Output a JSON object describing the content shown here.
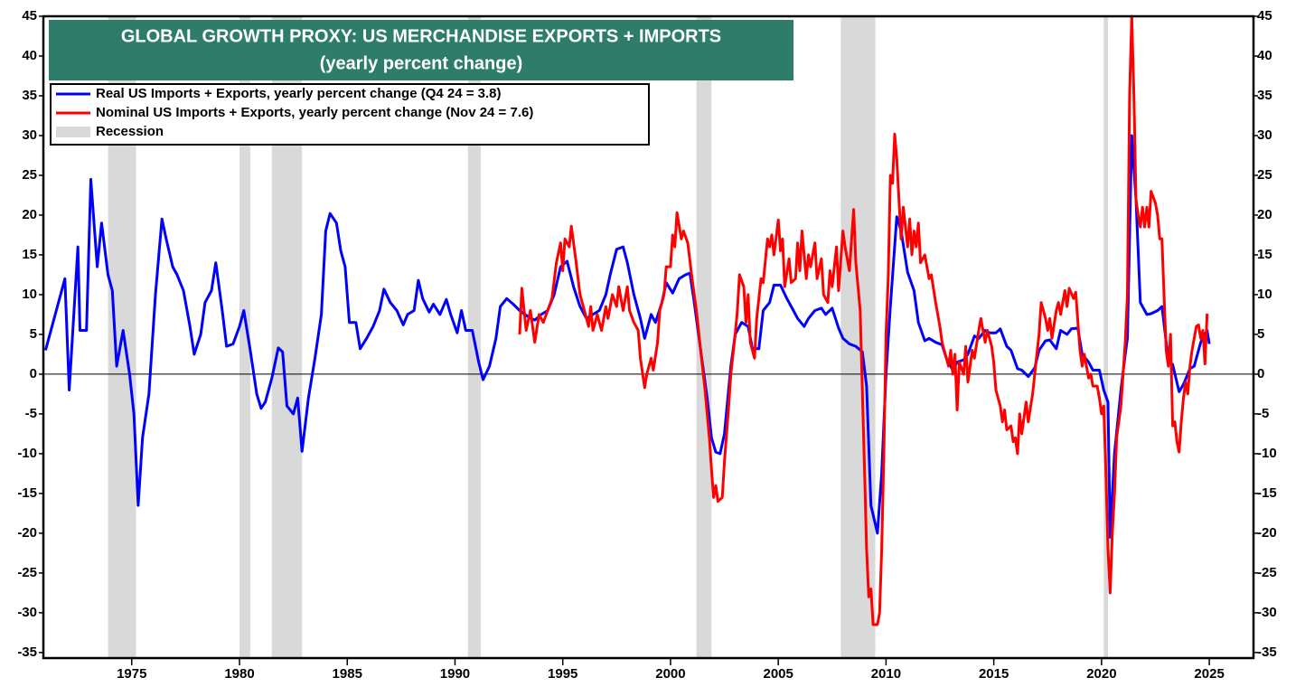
{
  "chart_data": {
    "type": "line",
    "title": "GLOBAL GROWTH PROXY: US MERCHANDISE EXPORTS + IMPORTS",
    "subtitle": "(yearly percent change)",
    "xlim": [
      1970.9,
      2027.05
    ],
    "xticks": [
      1975,
      1980,
      1985,
      1990,
      1995,
      2000,
      2005,
      2010,
      2015,
      2020,
      2025
    ],
    "ylim": [
      -35.7,
      45
    ],
    "yticks": [
      -35,
      -30,
      -25,
      -20,
      -15,
      -10,
      -5,
      0,
      5,
      10,
      15,
      20,
      25,
      30,
      35,
      40,
      45
    ],
    "y2lim": [
      -35.7,
      45
    ],
    "y2ticks": [
      -35,
      -30,
      -25,
      -20,
      -15,
      -10,
      -5,
      0,
      5,
      10,
      15,
      20,
      25,
      30,
      35,
      40,
      45
    ],
    "legend": "upper left",
    "recession": {
      "name": "Recession",
      "color": "#d9d9d9",
      "periods": [
        [
          1973.9,
          1975.2
        ],
        [
          1980.0,
          1980.5
        ],
        [
          1981.5,
          1982.9
        ],
        [
          1990.6,
          1991.2
        ],
        [
          2001.2,
          2001.9
        ],
        [
          2007.9,
          2009.5
        ],
        [
          2020.1,
          2020.3
        ]
      ]
    },
    "series": [
      {
        "name": "Real US Imports + Exports, yearly percent change (Q4 24 = 3.8)",
        "color": "#0000ff",
        "x": [
          1971.0,
          1971.5,
          1971.9,
          1972.1,
          1972.5,
          1972.6,
          1972.9,
          1973.1,
          1973.4,
          1973.6,
          1973.9,
          1974.1,
          1974.3,
          1974.6,
          1974.9,
          1975.1,
          1975.3,
          1975.5,
          1975.8,
          1976.1,
          1976.4,
          1976.6,
          1976.9,
          1977.1,
          1977.4,
          1977.7,
          1977.9,
          1978.2,
          1978.4,
          1978.7,
          1978.9,
          1979.2,
          1979.4,
          1979.7,
          1980.0,
          1980.2,
          1980.5,
          1980.8,
          1981.0,
          1981.2,
          1981.5,
          1981.8,
          1982.0,
          1982.2,
          1982.5,
          1982.7,
          1982.9,
          1983.2,
          1983.5,
          1983.8,
          1984.0,
          1984.2,
          1984.5,
          1984.7,
          1984.9,
          1985.1,
          1985.4,
          1985.6,
          1985.9,
          1986.2,
          1986.5,
          1986.7,
          1987.0,
          1987.3,
          1987.6,
          1987.8,
          1988.1,
          1988.3,
          1988.5,
          1988.8,
          1989.0,
          1989.3,
          1989.6,
          1989.8,
          1990.1,
          1990.3,
          1990.5,
          1990.8,
          1991.1,
          1991.3,
          1991.6,
          1991.9,
          1992.1,
          1992.4,
          1992.7,
          1993.0,
          1993.4,
          1993.7,
          1994.0,
          1994.3,
          1994.6,
          1994.9,
          1995.2,
          1995.5,
          1995.8,
          1996.1,
          1996.4,
          1996.7,
          1997.0,
          1997.2,
          1997.5,
          1997.8,
          1998.0,
          1998.3,
          1998.6,
          1998.8,
          1999.1,
          1999.3,
          1999.6,
          1999.8,
          2000.1,
          2000.4,
          2000.7,
          2000.9,
          2001.1,
          2001.4,
          2001.7,
          2001.9,
          2002.1,
          2002.3,
          2002.5,
          2002.8,
          2003.0,
          2003.3,
          2003.6,
          2003.8,
          2004.1,
          2004.3,
          2004.6,
          2004.8,
          2005.1,
          2005.4,
          2005.7,
          2005.9,
          2006.2,
          2006.4,
          2006.7,
          2007.0,
          2007.2,
          2007.5,
          2007.8,
          2008.0,
          2008.3,
          2008.6,
          2008.9,
          2009.1,
          2009.3,
          2009.6,
          2009.8,
          2010.0,
          2010.2,
          2010.5,
          2010.7,
          2011.0,
          2011.3,
          2011.5,
          2011.8,
          2012.0,
          2012.3,
          2012.6,
          2012.8,
          2013.1,
          2013.3,
          2013.6,
          2013.8,
          2014.1,
          2014.3,
          2014.6,
          2014.8,
          2015.1,
          2015.3,
          2015.6,
          2015.8,
          2016.1,
          2016.3,
          2016.6,
          2016.9,
          2017.1,
          2017.4,
          2017.6,
          2017.9,
          2018.1,
          2018.4,
          2018.6,
          2018.9,
          2019.1,
          2019.4,
          2019.6,
          2019.9,
          2020.1,
          2020.3,
          2020.4,
          2020.6,
          2020.9,
          2021.1,
          2021.2,
          2021.4,
          2021.6,
          2021.8,
          2022.1,
          2022.3,
          2022.6,
          2022.8,
          2023.1,
          2023.3,
          2023.6,
          2023.8,
          2024.1,
          2024.3,
          2024.6,
          2024.9,
          2025.0
        ],
        "values": [
          3,
          8,
          12,
          -2,
          16,
          5.5,
          5.5,
          24.5,
          13.5,
          19,
          12.5,
          10.5,
          1,
          5.5,
          0,
          -5,
          -16.5,
          -8,
          -2.5,
          10,
          19.5,
          17,
          13.5,
          12.5,
          10.5,
          6,
          2.5,
          5,
          9,
          10.5,
          14,
          8,
          3.5,
          3.8,
          6,
          8,
          3,
          -2.5,
          -4.3,
          -3.5,
          -0.5,
          3.3,
          2.8,
          -4,
          -5,
          -3,
          -9.7,
          -3,
          2,
          7.5,
          18,
          20.2,
          19,
          15.5,
          13.5,
          6.5,
          6.5,
          3.2,
          4.5,
          6,
          8,
          10.7,
          9,
          8,
          6.2,
          7.5,
          8,
          11.8,
          9.5,
          7.8,
          8.8,
          7.5,
          9.4,
          7.5,
          5.2,
          8,
          5.5,
          5.5,
          1.5,
          -0.7,
          1,
          4.5,
          8.5,
          9.5,
          8.8,
          8,
          7.2,
          6.8,
          7.5,
          8,
          10,
          13.5,
          14.2,
          11,
          8.5,
          7,
          7.5,
          8,
          10,
          12.5,
          15.7,
          16,
          14,
          10,
          7,
          4.5,
          7.5,
          6.5,
          9,
          11.5,
          10.2,
          12,
          12.5,
          12.7,
          9,
          3,
          -3,
          -8,
          -9.8,
          -10,
          -7.5,
          1,
          5,
          6.5,
          6,
          3.2,
          3.2,
          8,
          9,
          11.2,
          11.2,
          9.5,
          8,
          7,
          6,
          7,
          8,
          8.3,
          7.5,
          8.3,
          5.8,
          4.5,
          3.8,
          3.5,
          2.8,
          -1.5,
          -16.5,
          -20,
          -12.5,
          0,
          8.5,
          19.8,
          18,
          12.8,
          10.5,
          6.5,
          4.2,
          4.5,
          4,
          3.7,
          2,
          0.5,
          1.5,
          1.8,
          2.5,
          4.8,
          4.5,
          5.5,
          5.2,
          5.2,
          5.7,
          3.5,
          3,
          0.7,
          0.5,
          -0.3,
          0.8,
          3,
          4.2,
          4.3,
          3.2,
          5.5,
          5,
          5.7,
          5.8,
          2.5,
          1.5,
          0.5,
          0.5,
          -2,
          -3.5,
          -20.5,
          -10,
          -2,
          2.5,
          4.5,
          30,
          22,
          9,
          7.5,
          7.6,
          8,
          8.5,
          1.8,
          1.2,
          -2.2,
          -1.3,
          0.7,
          1,
          4,
          5.5,
          3.8
        ]
      },
      {
        "name": "Nominal US Imports + Exports, yearly percent change (Nov 24 = 7.6)",
        "color": "#ff0000",
        "x": [
          1993.0,
          1993.1,
          1993.3,
          1993.5,
          1993.7,
          1993.9,
          1994.1,
          1994.3,
          1994.5,
          1994.7,
          1994.9,
          1995.0,
          1995.1,
          1995.3,
          1995.4,
          1995.6,
          1995.8,
          1996.0,
          1996.2,
          1996.3,
          1996.4,
          1996.6,
          1996.8,
          1997.0,
          1997.1,
          1997.3,
          1997.5,
          1997.6,
          1997.8,
          1998.0,
          1998.1,
          1998.3,
          1998.5,
          1998.6,
          1998.8,
          1998.9,
          1999.1,
          1999.2,
          1999.4,
          1999.5,
          1999.7,
          1999.8,
          2000.0,
          2000.1,
          2000.2,
          2000.3,
          2000.5,
          2000.6,
          2000.8,
          2001.0,
          2001.2,
          2001.4,
          2001.6,
          2001.8,
          2001.9,
          2002.0,
          2002.1,
          2002.2,
          2002.4,
          2002.5,
          2002.7,
          2002.8,
          2003.0,
          2003.1,
          2003.2,
          2003.4,
          2003.5,
          2003.6,
          2003.7,
          2003.9,
          2004.0,
          2004.2,
          2004.3,
          2004.5,
          2004.6,
          2004.7,
          2004.8,
          2005.0,
          2005.1,
          2005.2,
          2005.3,
          2005.5,
          2005.6,
          2005.8,
          2005.9,
          2006.0,
          2006.1,
          2006.3,
          2006.4,
          2006.5,
          2006.7,
          2006.8,
          2007.0,
          2007.1,
          2007.3,
          2007.4,
          2007.5,
          2007.7,
          2007.8,
          2008.0,
          2008.1,
          2008.3,
          2008.4,
          2008.5,
          2008.6,
          2008.8,
          2008.9,
          2009.0,
          2009.1,
          2009.2,
          2009.3,
          2009.4,
          2009.6,
          2009.7,
          2009.8,
          2009.9,
          2010.0,
          2010.1,
          2010.2,
          2010.3,
          2010.4,
          2010.5,
          2010.6,
          2010.7,
          2010.8,
          2011.0,
          2011.1,
          2011.2,
          2011.3,
          2011.4,
          2011.5,
          2011.6,
          2011.8,
          2012.0,
          2012.1,
          2012.3,
          2012.5,
          2012.6,
          2012.8,
          2012.9,
          2013.0,
          2013.1,
          2013.2,
          2013.3,
          2013.4,
          2013.6,
          2013.7,
          2013.8,
          2014.0,
          2014.1,
          2014.3,
          2014.4,
          2014.6,
          2014.7,
          2014.9,
          2015.0,
          2015.1,
          2015.3,
          2015.4,
          2015.5,
          2015.6,
          2015.8,
          2015.9,
          2016.0,
          2016.1,
          2016.2,
          2016.3,
          2016.5,
          2016.6,
          2016.8,
          2017.0,
          2017.1,
          2017.2,
          2017.4,
          2017.5,
          2017.6,
          2017.7,
          2017.9,
          2018.0,
          2018.1,
          2018.3,
          2018.4,
          2018.5,
          2018.7,
          2018.8,
          2019.0,
          2019.1,
          2019.2,
          2019.4,
          2019.5,
          2019.6,
          2019.8,
          2019.9,
          2020.0,
          2020.1,
          2020.2,
          2020.3,
          2020.4,
          2020.5,
          2020.6,
          2020.7,
          2020.9,
          2021.0,
          2021.1,
          2021.2,
          2021.3,
          2021.4,
          2021.5,
          2021.6,
          2021.7,
          2021.8,
          2021.9,
          2022.0,
          2022.1,
          2022.2,
          2022.3,
          2022.5,
          2022.6,
          2022.7,
          2022.8,
          2022.9,
          2023.0,
          2023.1,
          2023.2,
          2023.3,
          2023.4,
          2023.5,
          2023.6,
          2023.7,
          2023.8,
          2023.9,
          2024.0,
          2024.1,
          2024.2,
          2024.3,
          2024.4,
          2024.5,
          2024.6,
          2024.7,
          2024.8,
          2024.9
        ],
        "values": [
          5,
          10.8,
          5.5,
          8,
          4,
          7.5,
          6.5,
          8,
          9.5,
          14,
          16.5,
          13,
          17,
          16,
          18.6,
          14.5,
          10,
          8,
          6,
          8.5,
          5.5,
          7.5,
          5.5,
          8.5,
          7,
          10,
          8.5,
          11,
          8,
          11,
          8,
          6.5,
          5.5,
          2,
          -1.7,
          0,
          2,
          0.5,
          4,
          8,
          10,
          13.5,
          13.5,
          17.5,
          16,
          20.3,
          17,
          18,
          16.5,
          12,
          8,
          3,
          -2,
          -8,
          -12,
          -15.5,
          -14,
          -16,
          -15.5,
          -11,
          -4,
          0,
          5,
          8,
          12.5,
          11,
          6.5,
          10,
          4,
          2,
          7,
          12,
          11.5,
          17,
          16,
          17.5,
          15,
          19.4,
          15.5,
          17,
          11,
          14.5,
          11.5,
          12,
          16.5,
          13,
          18,
          12,
          15,
          13.5,
          16.5,
          12,
          14.5,
          10,
          9,
          13,
          11,
          16,
          10.5,
          18,
          16,
          13,
          17,
          20.7,
          14,
          8,
          -2,
          -12,
          -22,
          -28,
          -27,
          -31.5,
          -31.5,
          -30,
          -22,
          -10,
          5,
          12,
          25,
          24,
          30.2,
          27,
          22,
          17,
          21,
          16,
          19.5,
          15,
          18,
          16,
          19,
          14,
          15,
          12,
          12.5,
          9,
          6,
          4,
          2,
          1,
          3,
          0,
          2.5,
          -4.5,
          1.5,
          0,
          3.5,
          -1,
          3,
          2,
          5.5,
          7,
          4,
          5.5,
          3.5,
          1.5,
          -2,
          -4,
          -6,
          -4.5,
          -7,
          -6.5,
          -8.5,
          -8,
          -10,
          -5,
          -7.5,
          -3.5,
          -6,
          -2.5,
          2.5,
          5,
          9,
          7,
          5.5,
          7,
          4.5,
          8,
          9,
          7.5,
          10.5,
          8.5,
          10.8,
          9.5,
          10.3,
          3,
          1,
          2.5,
          -0.5,
          0,
          -1.5,
          -1.5,
          -3,
          -5,
          -4,
          -12,
          -22,
          -27.5,
          -20,
          -15,
          -8,
          -4,
          0,
          4,
          10,
          35,
          45,
          35,
          22,
          20,
          18.5,
          21,
          18.5,
          21,
          18.5,
          23,
          21.5,
          20,
          17,
          17,
          10,
          3,
          1,
          5,
          -6.5,
          -6,
          -8.5,
          -9.8,
          -6,
          -3,
          -1,
          -2.5,
          1,
          3,
          4.5,
          6,
          6.2,
          4.5,
          5.5,
          1.3,
          7.6
        ]
      }
    ]
  }
}
